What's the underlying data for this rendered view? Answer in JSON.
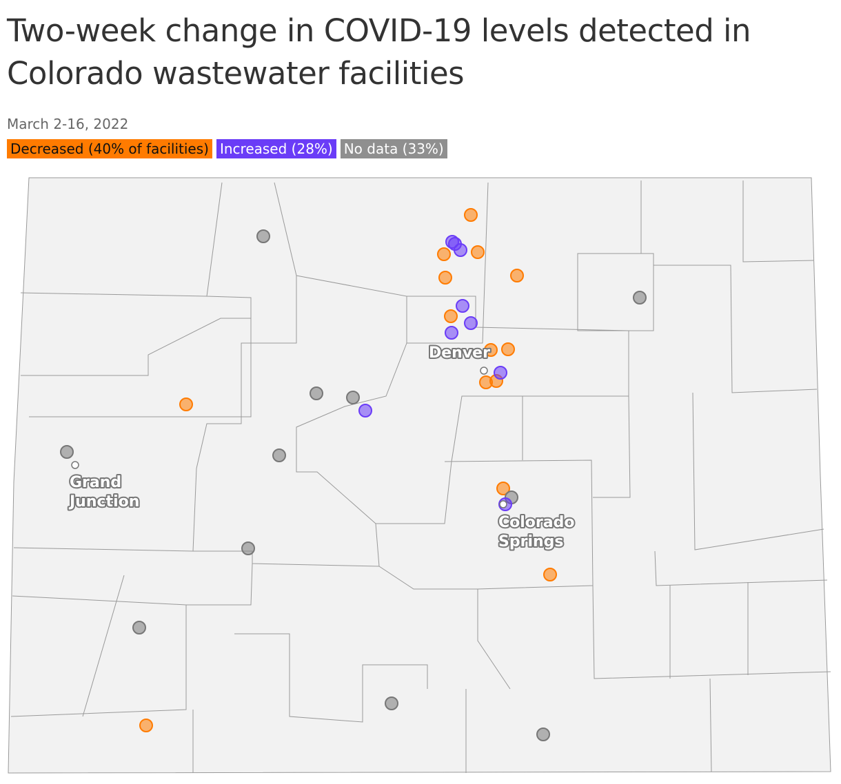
{
  "header": {
    "title": "Two-week change in COVID-19 levels detected in Colorado wastewater facilities",
    "subtitle": "March 2-16, 2022"
  },
  "legend": [
    {
      "label": "Decreased (40% of facilities)"
    },
    {
      "label": "Increased (28%)"
    },
    {
      "label": "No data (33%)"
    }
  ],
  "places": [
    {
      "lines": [
        "Denver"
      ]
    },
    {
      "lines": [
        "Grand",
        "Junction"
      ]
    },
    {
      "lines": [
        "Colorado",
        "Springs"
      ]
    }
  ]
}
